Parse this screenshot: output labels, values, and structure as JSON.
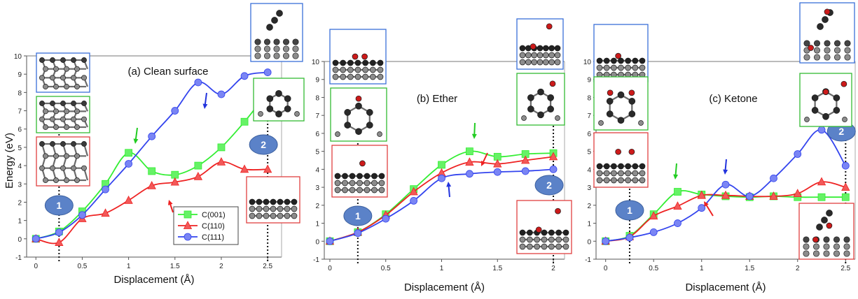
{
  "figure": {
    "ylabel": "Energy (eV)",
    "xlabel": "Displacement (Å)",
    "legend": [
      "C(001)",
      "C(110)",
      "C(111)"
    ],
    "marker_labels": [
      "1",
      "2"
    ],
    "colors": {
      "C(001)": "#33ee33",
      "C(110)": "#ee2222",
      "C(111)": "#3344ee"
    }
  },
  "chart_data": [
    {
      "type": "line",
      "title": "(a) Clean surface",
      "xlabel": "Displacement (Å)",
      "ylabel": "Energy (eV)",
      "xlim": [
        -0.1,
        2.65
      ],
      "ylim": [
        -1,
        10
      ],
      "xticks": [
        0,
        0.5,
        1,
        1.5,
        2,
        2.5
      ],
      "yticks": [
        -1,
        0,
        1,
        2,
        3,
        4,
        5,
        6,
        7,
        8,
        9,
        10
      ],
      "legend_position": "bottom-center",
      "x": [
        0,
        0.25,
        0.5,
        0.75,
        1.0,
        1.25,
        1.5,
        1.75,
        2.0,
        2.25,
        2.5
      ],
      "series": [
        {
          "name": "C(001)",
          "marker": "square",
          "values": [
            0,
            0.4,
            1.5,
            3.0,
            4.7,
            3.7,
            3.5,
            4.0,
            5.0,
            6.4,
            8.0
          ]
        },
        {
          "name": "C(110)",
          "marker": "triangle",
          "values": [
            0,
            -0.2,
            1.1,
            1.4,
            2.1,
            2.9,
            3.1,
            3.4,
            4.2,
            3.8,
            3.8
          ]
        },
        {
          "name": "C(111)",
          "marker": "circle",
          "values": [
            0,
            0.35,
            1.3,
            2.7,
            4.1,
            5.6,
            7.0,
            8.55,
            7.9,
            8.9,
            9.1
          ]
        }
      ]
    },
    {
      "type": "line",
      "title": "(b) Ether",
      "xlabel": "Displacement (Å)",
      "ylabel": "",
      "xlim": [
        -0.05,
        2.1
      ],
      "ylim": [
        -1,
        10
      ],
      "xticks": [
        0,
        0.5,
        1,
        1.5,
        2
      ],
      "yticks": [
        -1,
        0,
        1,
        2,
        3,
        4,
        5,
        6,
        7,
        8,
        9,
        10
      ],
      "x": [
        0,
        0.25,
        0.5,
        0.75,
        1.0,
        1.25,
        1.5,
        1.75,
        2.0
      ],
      "series": [
        {
          "name": "C(001)",
          "marker": "square",
          "values": [
            0,
            0.5,
            1.5,
            2.9,
            4.25,
            5.0,
            4.7,
            4.85,
            4.9
          ]
        },
        {
          "name": "C(110)",
          "marker": "triangle",
          "values": [
            0,
            0.5,
            1.45,
            2.75,
            3.8,
            4.4,
            4.3,
            4.5,
            4.7
          ]
        },
        {
          "name": "C(111)",
          "marker": "circle",
          "values": [
            0,
            0.45,
            1.25,
            2.25,
            3.5,
            3.75,
            3.85,
            3.9,
            4.0
          ]
        }
      ]
    },
    {
      "type": "line",
      "title": "(c) Ketone",
      "xlabel": "Displacement (Å)",
      "ylabel": "",
      "xlim": [
        -0.1,
        2.6
      ],
      "ylim": [
        -1,
        10
      ],
      "xticks": [
        0,
        0.5,
        1,
        1.5,
        2,
        2.5
      ],
      "yticks": [
        -1,
        0,
        1,
        2,
        3,
        4,
        5,
        6,
        7,
        8,
        9,
        10
      ],
      "x": [
        0,
        0.25,
        0.5,
        0.75,
        1.0,
        1.25,
        1.5,
        1.75,
        2.0,
        2.25,
        2.5
      ],
      "series": [
        {
          "name": "C(001)",
          "marker": "square",
          "values": [
            0,
            0.3,
            1.5,
            2.75,
            2.6,
            2.5,
            2.45,
            2.5,
            2.45,
            2.45,
            2.45
          ]
        },
        {
          "name": "C(110)",
          "marker": "triangle",
          "values": [
            0,
            0.25,
            1.4,
            1.95,
            2.55,
            2.55,
            2.5,
            2.5,
            2.65,
            3.3,
            3.0
          ]
        },
        {
          "name": "C(111)",
          "marker": "circle",
          "values": [
            0,
            0.2,
            0.5,
            1.0,
            1.85,
            3.15,
            2.5,
            3.5,
            4.85,
            6.2,
            4.2
          ]
        }
      ]
    }
  ]
}
